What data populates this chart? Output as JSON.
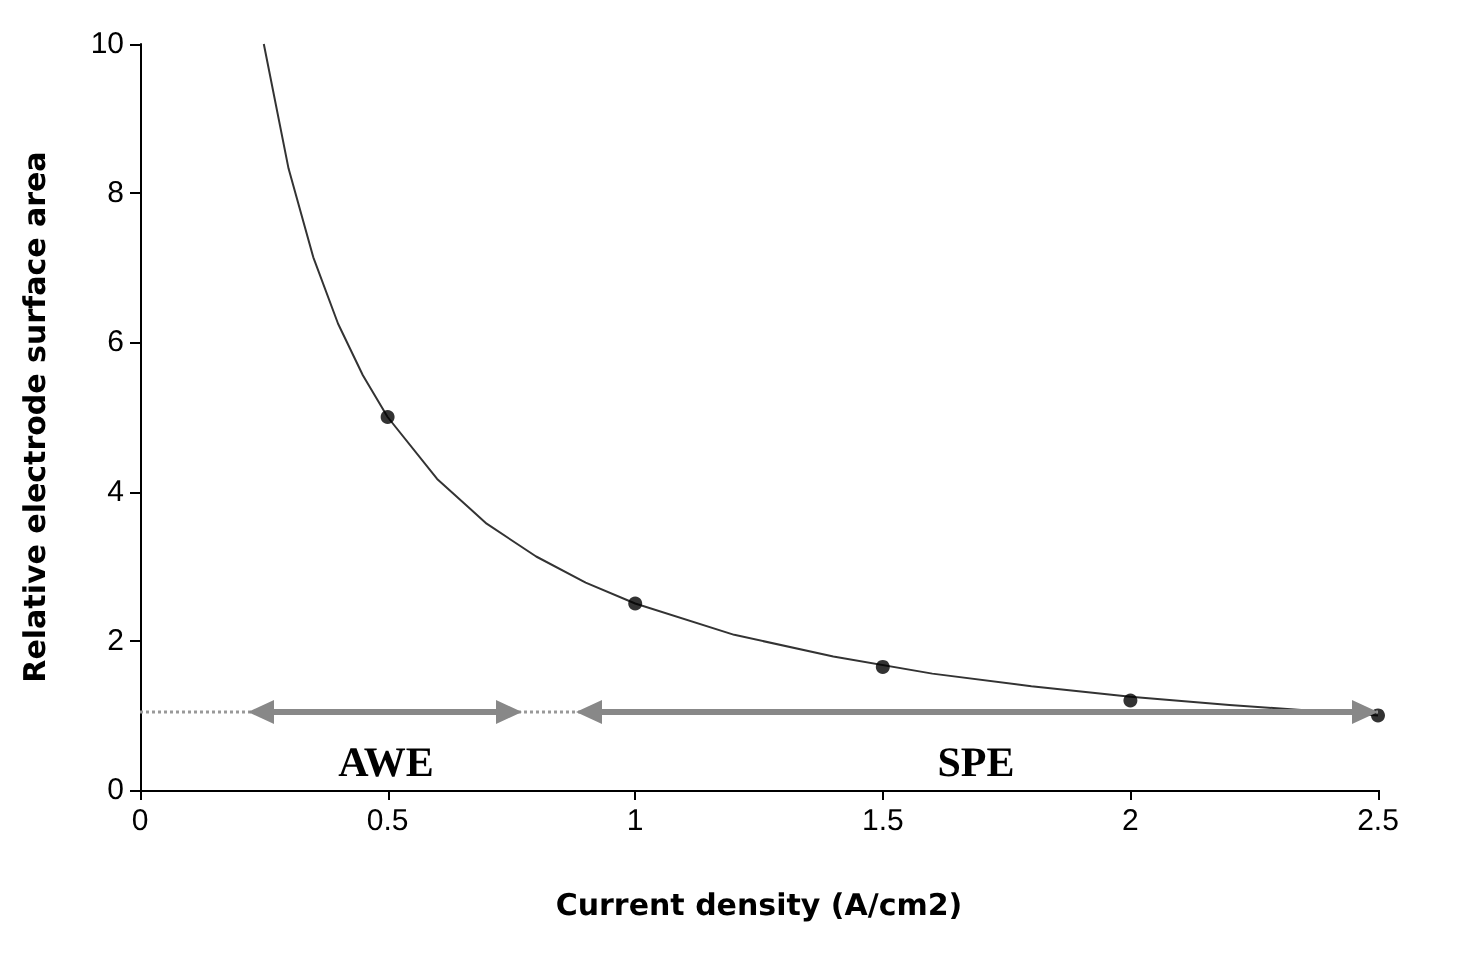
{
  "chart_data": {
    "type": "scatter",
    "xlabel": "Current density (A/cm2)",
    "ylabel": "Relative electrode surface area",
    "xlim": [
      0,
      2.5
    ],
    "xticks": [
      0,
      0.5,
      1,
      1.5,
      2,
      2.5
    ],
    "ylim": [
      0,
      10
    ],
    "yticks": [
      0,
      2,
      4,
      6,
      8,
      10
    ],
    "series": [
      {
        "type": "line",
        "color": "#333333",
        "marker": "none",
        "x": [
          0.25,
          0.3,
          0.35,
          0.4,
          0.45,
          0.5,
          0.6,
          0.7,
          0.8,
          0.9,
          1,
          1.2,
          1.4,
          1.6,
          1.8,
          2,
          2.2,
          2.5
        ],
        "values": [
          10,
          8.33,
          7.14,
          6.25,
          5.56,
          5,
          4.17,
          3.57,
          3.13,
          2.78,
          2.5,
          2.08,
          1.79,
          1.56,
          1.39,
          1.25,
          1.14,
          1
        ]
      },
      {
        "type": "scatter",
        "color": "#000000",
        "marker": "circle",
        "x": [
          0.5,
          1,
          1.5,
          2,
          2.5
        ],
        "values": [
          5,
          2.5,
          1.65,
          1.2,
          1
        ]
      }
    ],
    "ref_lines": [
      {
        "axis": "y",
        "value": 1.05,
        "color": "#999999",
        "line_style": "dotted"
      }
    ],
    "annotations": [
      "AWE",
      "SPE"
    ]
  }
}
